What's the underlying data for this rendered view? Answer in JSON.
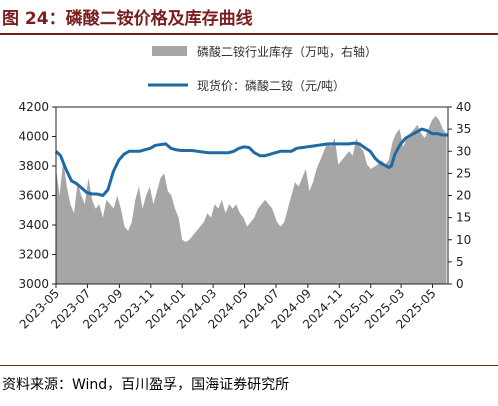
{
  "figure": {
    "title": "图 24：磷酸二铵价格及库存曲线",
    "source": "资料来源：Wind，百川盈孚，国海证券研究所"
  },
  "colors": {
    "title": "#7b1e1e",
    "price_line": "#1f6aa5",
    "inventory_area": "#a6a6a6"
  },
  "chart_data": {
    "type": "area",
    "title": "",
    "legend_position": "top-center",
    "grid": false,
    "x_tick_labels": [
      "2023-05",
      "2023-07",
      "2023-09",
      "2023-11",
      "2024-01",
      "2024-03",
      "2024-05",
      "2024-07",
      "2024-09",
      "2024-11",
      "2025-01",
      "2025-03",
      "2025-05"
    ],
    "y_left": {
      "label": "",
      "ylim": [
        3000,
        4200
      ],
      "ticks": [
        3000,
        3200,
        3400,
        3600,
        3800,
        4000,
        4200
      ]
    },
    "y_right": {
      "label": "",
      "ylim": [
        0,
        40
      ],
      "ticks": [
        0,
        5,
        10,
        15,
        20,
        25,
        30,
        35,
        40
      ]
    },
    "x_range": [
      "2023-05-01",
      "2025-05-31"
    ],
    "series": [
      {
        "name": "磷酸二铵行业库存（万吨，右轴）",
        "type": "area",
        "axis": "right",
        "points": [
          [
            "2023-05-01",
            26
          ],
          [
            "2023-05-08",
            20
          ],
          [
            "2023-05-15",
            28
          ],
          [
            "2023-05-22",
            22
          ],
          [
            "2023-05-29",
            18
          ],
          [
            "2023-06-05",
            16
          ],
          [
            "2023-06-12",
            23
          ],
          [
            "2023-06-19",
            20
          ],
          [
            "2023-06-26",
            18
          ],
          [
            "2023-07-03",
            24
          ],
          [
            "2023-07-10",
            19
          ],
          [
            "2023-07-17",
            17
          ],
          [
            "2023-07-24",
            18
          ],
          [
            "2023-07-31",
            15
          ],
          [
            "2023-08-07",
            19
          ],
          [
            "2023-08-14",
            18
          ],
          [
            "2023-08-21",
            17
          ],
          [
            "2023-08-28",
            20
          ],
          [
            "2023-09-04",
            17
          ],
          [
            "2023-09-11",
            13
          ],
          [
            "2023-09-18",
            12
          ],
          [
            "2023-09-25",
            14
          ],
          [
            "2023-10-02",
            19
          ],
          [
            "2023-10-09",
            22
          ],
          [
            "2023-10-16",
            17
          ],
          [
            "2023-10-23",
            20
          ],
          [
            "2023-10-30",
            22
          ],
          [
            "2023-11-06",
            18
          ],
          [
            "2023-11-13",
            21
          ],
          [
            "2023-11-20",
            24
          ],
          [
            "2023-11-27",
            25
          ],
          [
            "2023-12-04",
            21
          ],
          [
            "2023-12-11",
            20
          ],
          [
            "2023-12-18",
            17
          ],
          [
            "2023-12-25",
            15
          ],
          [
            "2024-01-01",
            10
          ],
          [
            "2024-01-08",
            9.5
          ],
          [
            "2024-01-15",
            10
          ],
          [
            "2024-01-22",
            11
          ],
          [
            "2024-01-29",
            12
          ],
          [
            "2024-02-05",
            13
          ],
          [
            "2024-02-12",
            14
          ],
          [
            "2024-02-19",
            16
          ],
          [
            "2024-02-26",
            15
          ],
          [
            "2024-03-04",
            18
          ],
          [
            "2024-03-11",
            17
          ],
          [
            "2024-03-18",
            19
          ],
          [
            "2024-03-25",
            16
          ],
          [
            "2024-04-01",
            18
          ],
          [
            "2024-04-08",
            17
          ],
          [
            "2024-04-15",
            18
          ],
          [
            "2024-04-22",
            16
          ],
          [
            "2024-04-29",
            15
          ],
          [
            "2024-05-06",
            13
          ],
          [
            "2024-05-13",
            14
          ],
          [
            "2024-05-20",
            15
          ],
          [
            "2024-05-27",
            17
          ],
          [
            "2024-06-03",
            18
          ],
          [
            "2024-06-10",
            19
          ],
          [
            "2024-06-17",
            18
          ],
          [
            "2024-06-24",
            17
          ],
          [
            "2024-07-03",
            14
          ],
          [
            "2024-07-10",
            13
          ],
          [
            "2024-07-17",
            14
          ],
          [
            "2024-07-24",
            17
          ],
          [
            "2024-07-31",
            20
          ],
          [
            "2024-08-07",
            23
          ],
          [
            "2024-08-14",
            22
          ],
          [
            "2024-08-21",
            24
          ],
          [
            "2024-08-28",
            26
          ],
          [
            "2024-09-04",
            21
          ],
          [
            "2024-09-11",
            23
          ],
          [
            "2024-09-18",
            26
          ],
          [
            "2024-09-25",
            28
          ],
          [
            "2024-10-02",
            30
          ],
          [
            "2024-10-09",
            32
          ],
          [
            "2024-10-16",
            31
          ],
          [
            "2024-10-23",
            33
          ],
          [
            "2024-10-30",
            27
          ],
          [
            "2024-11-06",
            28
          ],
          [
            "2024-11-13",
            29
          ],
          [
            "2024-11-20",
            30
          ],
          [
            "2024-11-27",
            29
          ],
          [
            "2024-12-04",
            33
          ],
          [
            "2024-12-11",
            31
          ],
          [
            "2024-12-18",
            30
          ],
          [
            "2024-12-25",
            27
          ],
          [
            "2025-01-01",
            26
          ],
          [
            "2025-01-08",
            26.5
          ],
          [
            "2025-01-15",
            27
          ],
          [
            "2025-01-22",
            28
          ],
          [
            "2025-01-29",
            27
          ],
          [
            "2025-02-05",
            28
          ],
          [
            "2025-02-12",
            32
          ],
          [
            "2025-02-19",
            34
          ],
          [
            "2025-02-26",
            35
          ],
          [
            "2025-03-05",
            31
          ],
          [
            "2025-03-12",
            33
          ],
          [
            "2025-03-19",
            34
          ],
          [
            "2025-03-26",
            35
          ],
          [
            "2025-04-02",
            36
          ],
          [
            "2025-04-09",
            34
          ],
          [
            "2025-04-16",
            33
          ],
          [
            "2025-04-23",
            35
          ],
          [
            "2025-04-30",
            37
          ],
          [
            "2025-05-07",
            38
          ],
          [
            "2025-05-14",
            37
          ],
          [
            "2025-05-21",
            35
          ],
          [
            "2025-05-28",
            34
          ]
        ]
      },
      {
        "name": "现货价：磷酸二铵（元/吨）",
        "type": "line",
        "axis": "left",
        "points": [
          [
            "2023-05-01",
            3900
          ],
          [
            "2023-05-10",
            3870
          ],
          [
            "2023-05-20",
            3780
          ],
          [
            "2023-05-31",
            3700
          ],
          [
            "2023-06-10",
            3680
          ],
          [
            "2023-06-20",
            3650
          ],
          [
            "2023-06-30",
            3620
          ],
          [
            "2023-07-10",
            3610
          ],
          [
            "2023-07-20",
            3610
          ],
          [
            "2023-07-31",
            3600
          ],
          [
            "2023-08-10",
            3640
          ],
          [
            "2023-08-20",
            3760
          ],
          [
            "2023-08-31",
            3840
          ],
          [
            "2023-09-10",
            3880
          ],
          [
            "2023-09-20",
            3900
          ],
          [
            "2023-09-30",
            3900
          ],
          [
            "2023-10-10",
            3900
          ],
          [
            "2023-10-20",
            3910
          ],
          [
            "2023-10-31",
            3920
          ],
          [
            "2023-11-10",
            3940
          ],
          [
            "2023-11-20",
            3945
          ],
          [
            "2023-11-30",
            3950
          ],
          [
            "2023-12-10",
            3920
          ],
          [
            "2023-12-20",
            3910
          ],
          [
            "2023-12-31",
            3905
          ],
          [
            "2024-01-10",
            3905
          ],
          [
            "2024-01-20",
            3905
          ],
          [
            "2024-01-31",
            3900
          ],
          [
            "2024-02-10",
            3895
          ],
          [
            "2024-02-20",
            3890
          ],
          [
            "2024-02-29",
            3890
          ],
          [
            "2024-03-10",
            3890
          ],
          [
            "2024-03-20",
            3890
          ],
          [
            "2024-03-31",
            3890
          ],
          [
            "2024-04-10",
            3900
          ],
          [
            "2024-04-20",
            3920
          ],
          [
            "2024-04-30",
            3930
          ],
          [
            "2024-05-10",
            3925
          ],
          [
            "2024-05-20",
            3890
          ],
          [
            "2024-05-31",
            3870
          ],
          [
            "2024-06-10",
            3870
          ],
          [
            "2024-06-20",
            3880
          ],
          [
            "2024-06-30",
            3890
          ],
          [
            "2024-07-10",
            3900
          ],
          [
            "2024-07-20",
            3900
          ],
          [
            "2024-07-31",
            3900
          ],
          [
            "2024-08-10",
            3920
          ],
          [
            "2024-08-20",
            3925
          ],
          [
            "2024-08-31",
            3930
          ],
          [
            "2024-09-10",
            3935
          ],
          [
            "2024-09-20",
            3940
          ],
          [
            "2024-09-30",
            3945
          ],
          [
            "2024-10-10",
            3950
          ],
          [
            "2024-10-20",
            3950
          ],
          [
            "2024-10-31",
            3950
          ],
          [
            "2024-11-10",
            3950
          ],
          [
            "2024-11-20",
            3950
          ],
          [
            "2024-11-30",
            3955
          ],
          [
            "2024-12-10",
            3950
          ],
          [
            "2024-12-20",
            3925
          ],
          [
            "2024-12-31",
            3900
          ],
          [
            "2025-01-10",
            3850
          ],
          [
            "2025-01-20",
            3820
          ],
          [
            "2025-01-31",
            3800
          ],
          [
            "2025-02-05",
            3790
          ],
          [
            "2025-02-10",
            3800
          ],
          [
            "2025-02-17",
            3880
          ],
          [
            "2025-02-28",
            3950
          ],
          [
            "2025-03-10",
            3990
          ],
          [
            "2025-03-20",
            4010
          ],
          [
            "2025-03-31",
            4030
          ],
          [
            "2025-04-10",
            4050
          ],
          [
            "2025-04-20",
            4040
          ],
          [
            "2025-04-30",
            4020
          ],
          [
            "2025-05-10",
            4020
          ],
          [
            "2025-05-20",
            4010
          ],
          [
            "2025-05-31",
            4010
          ]
        ]
      }
    ]
  }
}
